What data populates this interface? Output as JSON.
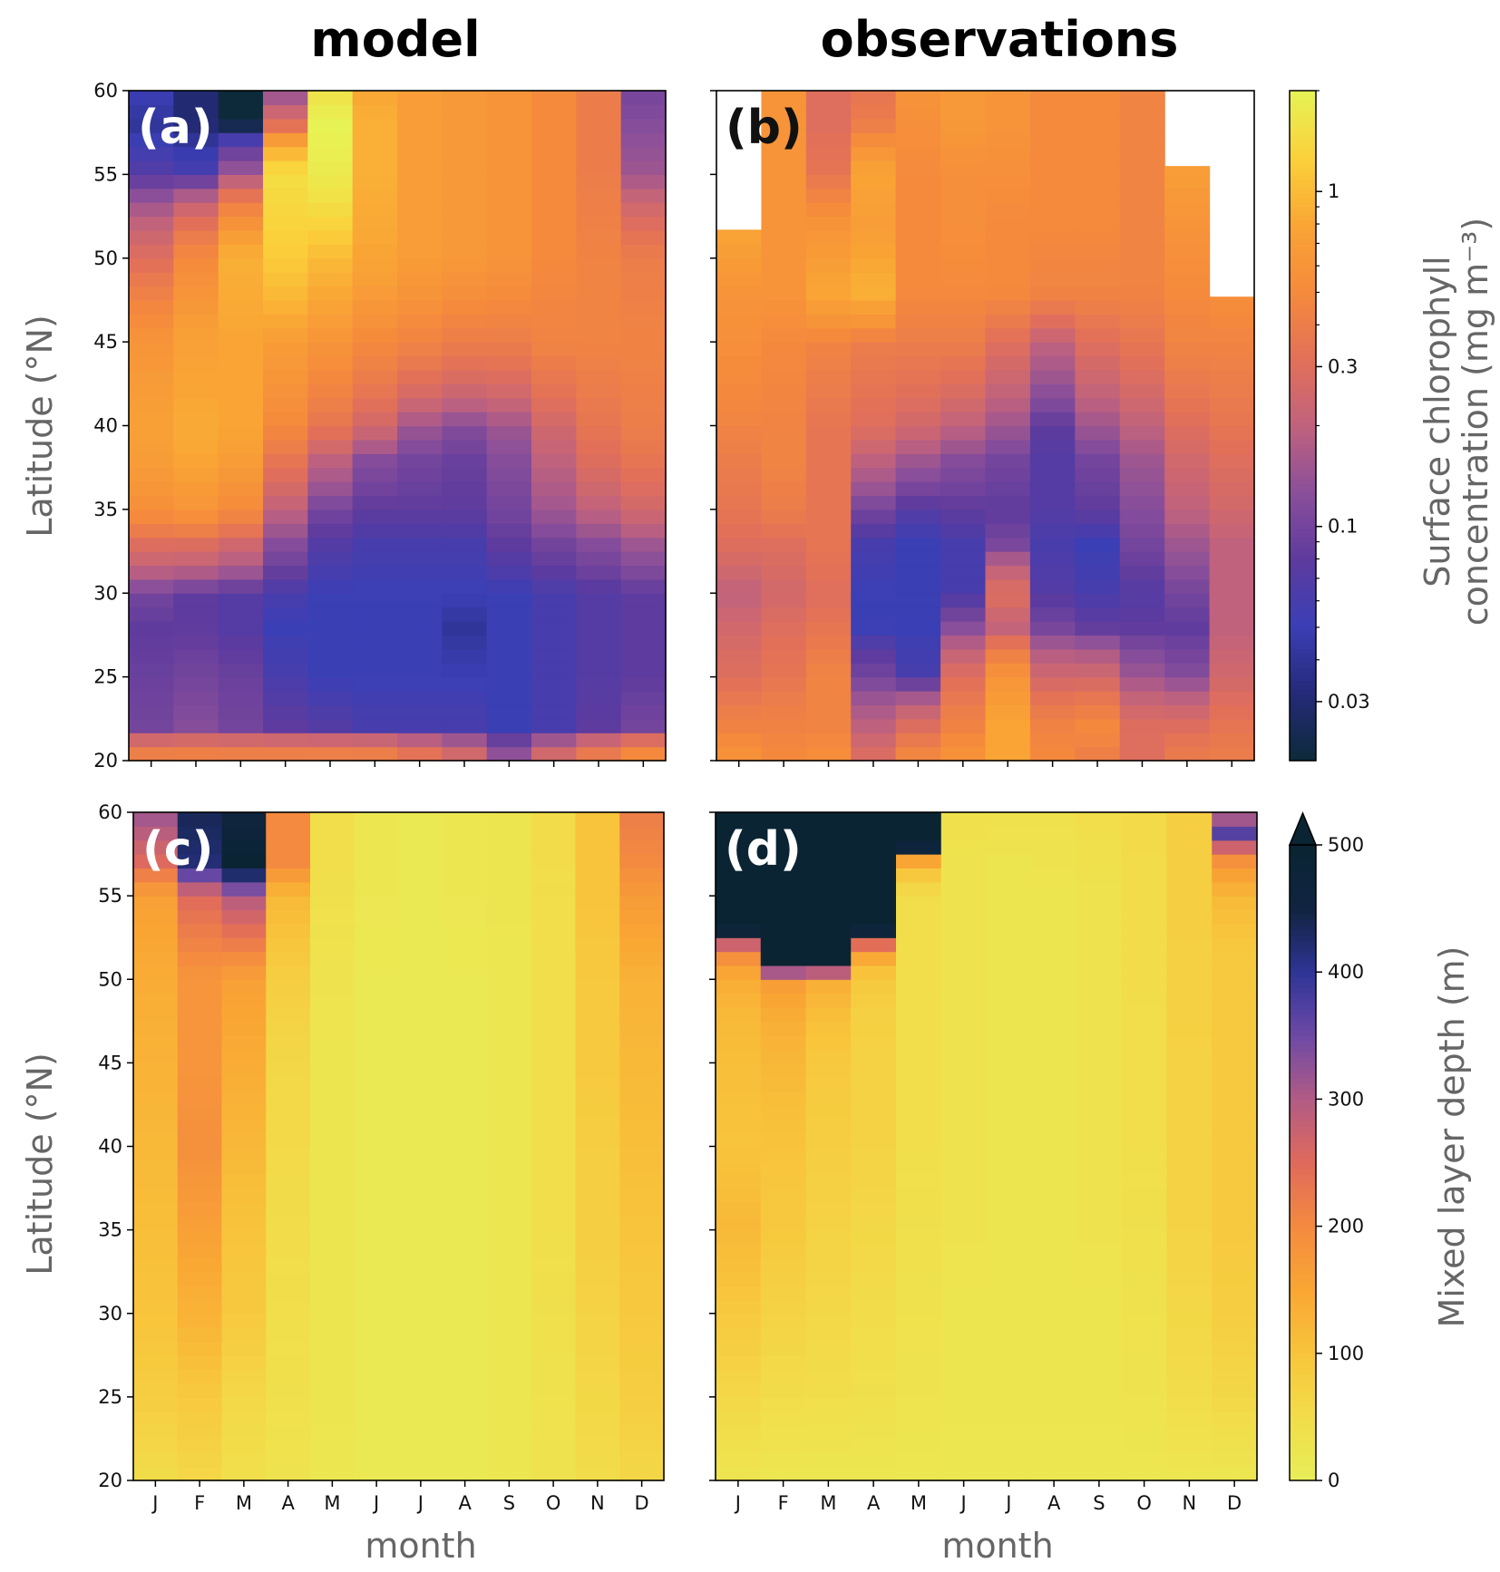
{
  "figure": {
    "col_titles": [
      "model",
      "observations"
    ],
    "colors": {
      "chl_colormap": [
        "#0d2a3a",
        "#252a7a",
        "#3b3fb5",
        "#5e3b9e",
        "#8a4f9a",
        "#c0627e",
        "#e27059",
        "#f58a3c",
        "#f9a435",
        "#fbd03a",
        "#e7f254"
      ],
      "mld_colormap": [
        "#e8ee57",
        "#f2dc49",
        "#f8c43b",
        "#f9a634",
        "#f48a3f",
        "#e06a5c",
        "#b25b84",
        "#6e4aa5",
        "#2f3598",
        "#112442",
        "#0a2433"
      ]
    }
  },
  "chart_data": [
    {
      "type": "heatmap",
      "panel": "(a)",
      "column": "model",
      "variable": "Surface chlorophyll concentration",
      "ylabel": "Latitude (°N)",
      "xlabel": "",
      "categories": [
        "J",
        "F",
        "M",
        "A",
        "M",
        "J",
        "J",
        "A",
        "S",
        "O",
        "N",
        "D"
      ],
      "ylim": [
        20,
        60
      ],
      "yticks": [
        "20",
        "25",
        "30",
        "35",
        "40",
        "45",
        "50",
        "55",
        "60"
      ],
      "latitudes": [
        20,
        22,
        25,
        28,
        30,
        33,
        35,
        38,
        40,
        45,
        50,
        55,
        58,
        60
      ],
      "values": [
        [
          0.5,
          0.5,
          0.5,
          0.5,
          0.5,
          0.5,
          0.4,
          0.3,
          0.15,
          0.3,
          0.45,
          0.6
        ],
        [
          0.1,
          0.12,
          0.1,
          0.08,
          0.07,
          0.06,
          0.06,
          0.06,
          0.05,
          0.06,
          0.08,
          0.1
        ],
        [
          0.09,
          0.1,
          0.09,
          0.06,
          0.05,
          0.05,
          0.05,
          0.05,
          0.05,
          0.06,
          0.07,
          0.08
        ],
        [
          0.08,
          0.08,
          0.07,
          0.05,
          0.05,
          0.05,
          0.05,
          0.04,
          0.05,
          0.06,
          0.07,
          0.08
        ],
        [
          0.1,
          0.08,
          0.07,
          0.06,
          0.05,
          0.05,
          0.05,
          0.05,
          0.05,
          0.06,
          0.07,
          0.08
        ],
        [
          0.3,
          0.3,
          0.25,
          0.12,
          0.07,
          0.06,
          0.06,
          0.06,
          0.08,
          0.1,
          0.12,
          0.15
        ],
        [
          0.55,
          0.6,
          0.5,
          0.2,
          0.1,
          0.08,
          0.08,
          0.08,
          0.1,
          0.15,
          0.2,
          0.25
        ],
        [
          0.7,
          0.8,
          0.7,
          0.35,
          0.2,
          0.12,
          0.1,
          0.09,
          0.12,
          0.2,
          0.3,
          0.35
        ],
        [
          0.75,
          0.85,
          0.8,
          0.5,
          0.35,
          0.25,
          0.15,
          0.12,
          0.15,
          0.25,
          0.35,
          0.4
        ],
        [
          0.6,
          0.75,
          0.8,
          0.7,
          0.6,
          0.5,
          0.45,
          0.4,
          0.4,
          0.45,
          0.45,
          0.45
        ],
        [
          0.3,
          0.5,
          0.9,
          1.2,
          1.0,
          0.8,
          0.7,
          0.65,
          0.6,
          0.5,
          0.45,
          0.4
        ],
        [
          0.07,
          0.06,
          0.15,
          1.5,
          1.8,
          0.9,
          0.7,
          0.65,
          0.6,
          0.5,
          0.4,
          0.15
        ],
        [
          0.04,
          0.03,
          0.02,
          0.3,
          2.0,
          0.9,
          0.7,
          0.65,
          0.6,
          0.5,
          0.4,
          0.12
        ],
        [
          0.05,
          0.03,
          0.02,
          0.12,
          1.6,
          0.8,
          0.7,
          0.65,
          0.6,
          0.5,
          0.4,
          0.1
        ]
      ]
    },
    {
      "type": "heatmap",
      "panel": "(b)",
      "column": "observations",
      "variable": "Surface chlorophyll concentration",
      "ylabel": "",
      "xlabel": "",
      "categories": [
        "J",
        "F",
        "M",
        "A",
        "M",
        "J",
        "J",
        "A",
        "S",
        "O",
        "N",
        "D"
      ],
      "ylim": [
        20,
        60
      ],
      "yticks": [
        "20",
        "25",
        "30",
        "35",
        "40",
        "45",
        "50",
        "55",
        "60"
      ],
      "data_top_lat": [
        51.7,
        60,
        60,
        60,
        60,
        60,
        60,
        60,
        60,
        60,
        55.5,
        47.7
      ],
      "latitudes": [
        20,
        22,
        25,
        28,
        30,
        33,
        35,
        38,
        40,
        45,
        48,
        52,
        55,
        58,
        60
      ],
      "values": [
        [
          0.6,
          0.5,
          0.55,
          0.3,
          0.5,
          0.6,
          0.8,
          0.5,
          0.4,
          0.3,
          0.4,
          0.4
        ],
        [
          0.45,
          0.45,
          0.45,
          0.2,
          0.3,
          0.45,
          0.8,
          0.45,
          0.5,
          0.3,
          0.3,
          0.35
        ],
        [
          0.3,
          0.35,
          0.45,
          0.1,
          0.06,
          0.3,
          0.6,
          0.25,
          0.25,
          0.15,
          0.12,
          0.25
        ],
        [
          0.25,
          0.3,
          0.35,
          0.05,
          0.05,
          0.12,
          0.2,
          0.1,
          0.08,
          0.08,
          0.08,
          0.2
        ],
        [
          0.2,
          0.25,
          0.3,
          0.05,
          0.05,
          0.06,
          0.3,
          0.07,
          0.06,
          0.07,
          0.1,
          0.2
        ],
        [
          0.3,
          0.3,
          0.35,
          0.06,
          0.05,
          0.06,
          0.1,
          0.06,
          0.05,
          0.1,
          0.15,
          0.2
        ],
        [
          0.35,
          0.4,
          0.35,
          0.1,
          0.07,
          0.08,
          0.08,
          0.07,
          0.08,
          0.12,
          0.2,
          0.25
        ],
        [
          0.4,
          0.45,
          0.35,
          0.2,
          0.15,
          0.12,
          0.1,
          0.07,
          0.1,
          0.15,
          0.25,
          0.3
        ],
        [
          0.45,
          0.45,
          0.35,
          0.3,
          0.25,
          0.2,
          0.15,
          0.08,
          0.15,
          0.2,
          0.3,
          0.35
        ],
        [
          0.55,
          0.5,
          0.45,
          0.4,
          0.4,
          0.4,
          0.3,
          0.2,
          0.3,
          0.35,
          0.45,
          0.45
        ],
        [
          0.6,
          0.6,
          0.8,
          0.9,
          0.5,
          0.5,
          0.5,
          0.45,
          0.45,
          0.45,
          0.5,
          0.55
        ],
        [
          0.8,
          0.6,
          0.6,
          0.7,
          0.5,
          0.55,
          0.5,
          0.5,
          0.5,
          0.45,
          0.6,
          null
        ],
        [
          null,
          0.6,
          0.35,
          0.8,
          0.5,
          0.55,
          0.55,
          0.5,
          0.5,
          0.45,
          0.7,
          null
        ],
        [
          null,
          0.6,
          0.3,
          0.4,
          0.55,
          0.65,
          0.6,
          0.5,
          0.5,
          0.45,
          null,
          null
        ],
        [
          null,
          0.6,
          0.3,
          0.35,
          0.6,
          0.65,
          0.6,
          0.5,
          0.5,
          0.45,
          null,
          null
        ]
      ]
    },
    {
      "type": "heatmap",
      "panel": "(c)",
      "column": "model",
      "variable": "Mixed layer depth",
      "ylabel": "Latitude (°N)",
      "xlabel": "month",
      "categories": [
        "J",
        "F",
        "M",
        "A",
        "M",
        "J",
        "J",
        "A",
        "S",
        "O",
        "N",
        "D"
      ],
      "ylim": [
        20,
        60
      ],
      "yticks": [
        "20",
        "25",
        "30",
        "35",
        "40",
        "45",
        "50",
        "55",
        "60"
      ],
      "latitudes": [
        20,
        25,
        30,
        35,
        40,
        45,
        50,
        55,
        57,
        60
      ],
      "values": [
        [
          50,
          60,
          40,
          30,
          20,
          15,
          15,
          15,
          20,
          30,
          50,
          60
        ],
        [
          80,
          90,
          60,
          40,
          25,
          15,
          15,
          15,
          20,
          35,
          60,
          80
        ],
        [
          100,
          130,
          90,
          45,
          25,
          15,
          15,
          15,
          20,
          40,
          70,
          90
        ],
        [
          110,
          160,
          100,
          50,
          25,
          15,
          15,
          15,
          20,
          45,
          80,
          100
        ],
        [
          120,
          190,
          120,
          55,
          25,
          15,
          15,
          15,
          20,
          45,
          80,
          110
        ],
        [
          130,
          180,
          140,
          60,
          25,
          15,
          15,
          15,
          20,
          45,
          90,
          120
        ],
        [
          140,
          180,
          160,
          80,
          30,
          15,
          15,
          15,
          20,
          45,
          90,
          130
        ],
        [
          160,
          250,
          300,
          120,
          40,
          20,
          15,
          20,
          25,
          45,
          100,
          170
        ],
        [
          250,
          420,
          500,
          200,
          45,
          20,
          15,
          20,
          25,
          50,
          100,
          200
        ],
        [
          320,
          440,
          460,
          200,
          45,
          20,
          15,
          20,
          25,
          50,
          100,
          220
        ]
      ]
    },
    {
      "type": "heatmap",
      "panel": "(d)",
      "column": "observations",
      "variable": "Mixed layer depth",
      "ylabel": "",
      "xlabel": "month",
      "categories": [
        "J",
        "F",
        "M",
        "A",
        "M",
        "J",
        "J",
        "A",
        "S",
        "O",
        "N",
        "D"
      ],
      "ylim": [
        20,
        60
      ],
      "yticks": [
        "20",
        "25",
        "30",
        "35",
        "40",
        "45",
        "50",
        "55",
        "60"
      ],
      "latitudes": [
        20,
        25,
        30,
        35,
        40,
        45,
        48,
        50,
        51,
        52,
        53,
        55,
        57,
        58,
        59,
        60
      ],
      "values": [
        [
          25,
          20,
          20,
          20,
          20,
          20,
          20,
          20,
          20,
          20,
          20,
          20
        ],
        [
          60,
          50,
          45,
          40,
          30,
          25,
          25,
          25,
          25,
          30,
          50,
          60
        ],
        [
          90,
          70,
          60,
          50,
          35,
          25,
          25,
          25,
          25,
          35,
          60,
          80
        ],
        [
          120,
          90,
          70,
          60,
          40,
          30,
          25,
          25,
          30,
          40,
          70,
          90
        ],
        [
          100,
          100,
          80,
          70,
          45,
          30,
          25,
          25,
          30,
          45,
          70,
          90
        ],
        [
          110,
          120,
          90,
          70,
          45,
          30,
          25,
          25,
          30,
          45,
          70,
          90
        ],
        [
          120,
          140,
          110,
          75,
          45,
          30,
          25,
          25,
          30,
          45,
          75,
          90
        ],
        [
          140,
          170,
          140,
          90,
          45,
          30,
          25,
          25,
          30,
          50,
          75,
          90
        ],
        [
          170,
          500,
          500,
          120,
          45,
          30,
          25,
          25,
          30,
          50,
          75,
          90
        ],
        [
          250,
          500,
          500,
          220,
          45,
          30,
          25,
          25,
          30,
          50,
          75,
          90
        ],
        [
          500,
          500,
          500,
          500,
          45,
          30,
          25,
          25,
          30,
          50,
          80,
          100
        ],
        [
          500,
          500,
          500,
          500,
          45,
          30,
          25,
          25,
          30,
          50,
          80,
          120
        ],
        [
          500,
          500,
          500,
          500,
          120,
          30,
          25,
          30,
          40,
          50,
          80,
          180
        ],
        [
          500,
          500,
          500,
          500,
          500,
          35,
          30,
          30,
          40,
          55,
          80,
          280
        ],
        [
          500,
          500,
          500,
          500,
          500,
          40,
          35,
          35,
          45,
          55,
          80,
          400
        ],
        [
          500,
          500,
          500,
          500,
          500,
          40,
          35,
          35,
          45,
          55,
          80,
          250
        ]
      ]
    }
  ],
  "colorbars": [
    {
      "name": "chlorophyll",
      "label_line1": "Surface chlorophyll",
      "label_line2": "concentration (mg m⁻³)",
      "scale": "log",
      "vmin": 0.02,
      "vmax": 2.0,
      "ticks": [
        0.03,
        0.1,
        0.3,
        1.0
      ],
      "tick_labels": [
        "0.03",
        "0.1",
        "0.3",
        "1"
      ],
      "minor_ticks": [
        0.04,
        0.05,
        0.06,
        0.07,
        0.08,
        0.09,
        0.2,
        0.4,
        0.5,
        0.6,
        0.7,
        0.8,
        0.9,
        2.0
      ]
    },
    {
      "name": "mixed-layer-depth",
      "label": "Mixed layer depth (m)",
      "scale": "linear",
      "vmin": 0,
      "vmax": 500,
      "extend": "max",
      "ticks": [
        0,
        100,
        200,
        300,
        400,
        500
      ],
      "tick_labels": [
        "0",
        "100",
        "200",
        "300",
        "400",
        "500"
      ]
    }
  ]
}
